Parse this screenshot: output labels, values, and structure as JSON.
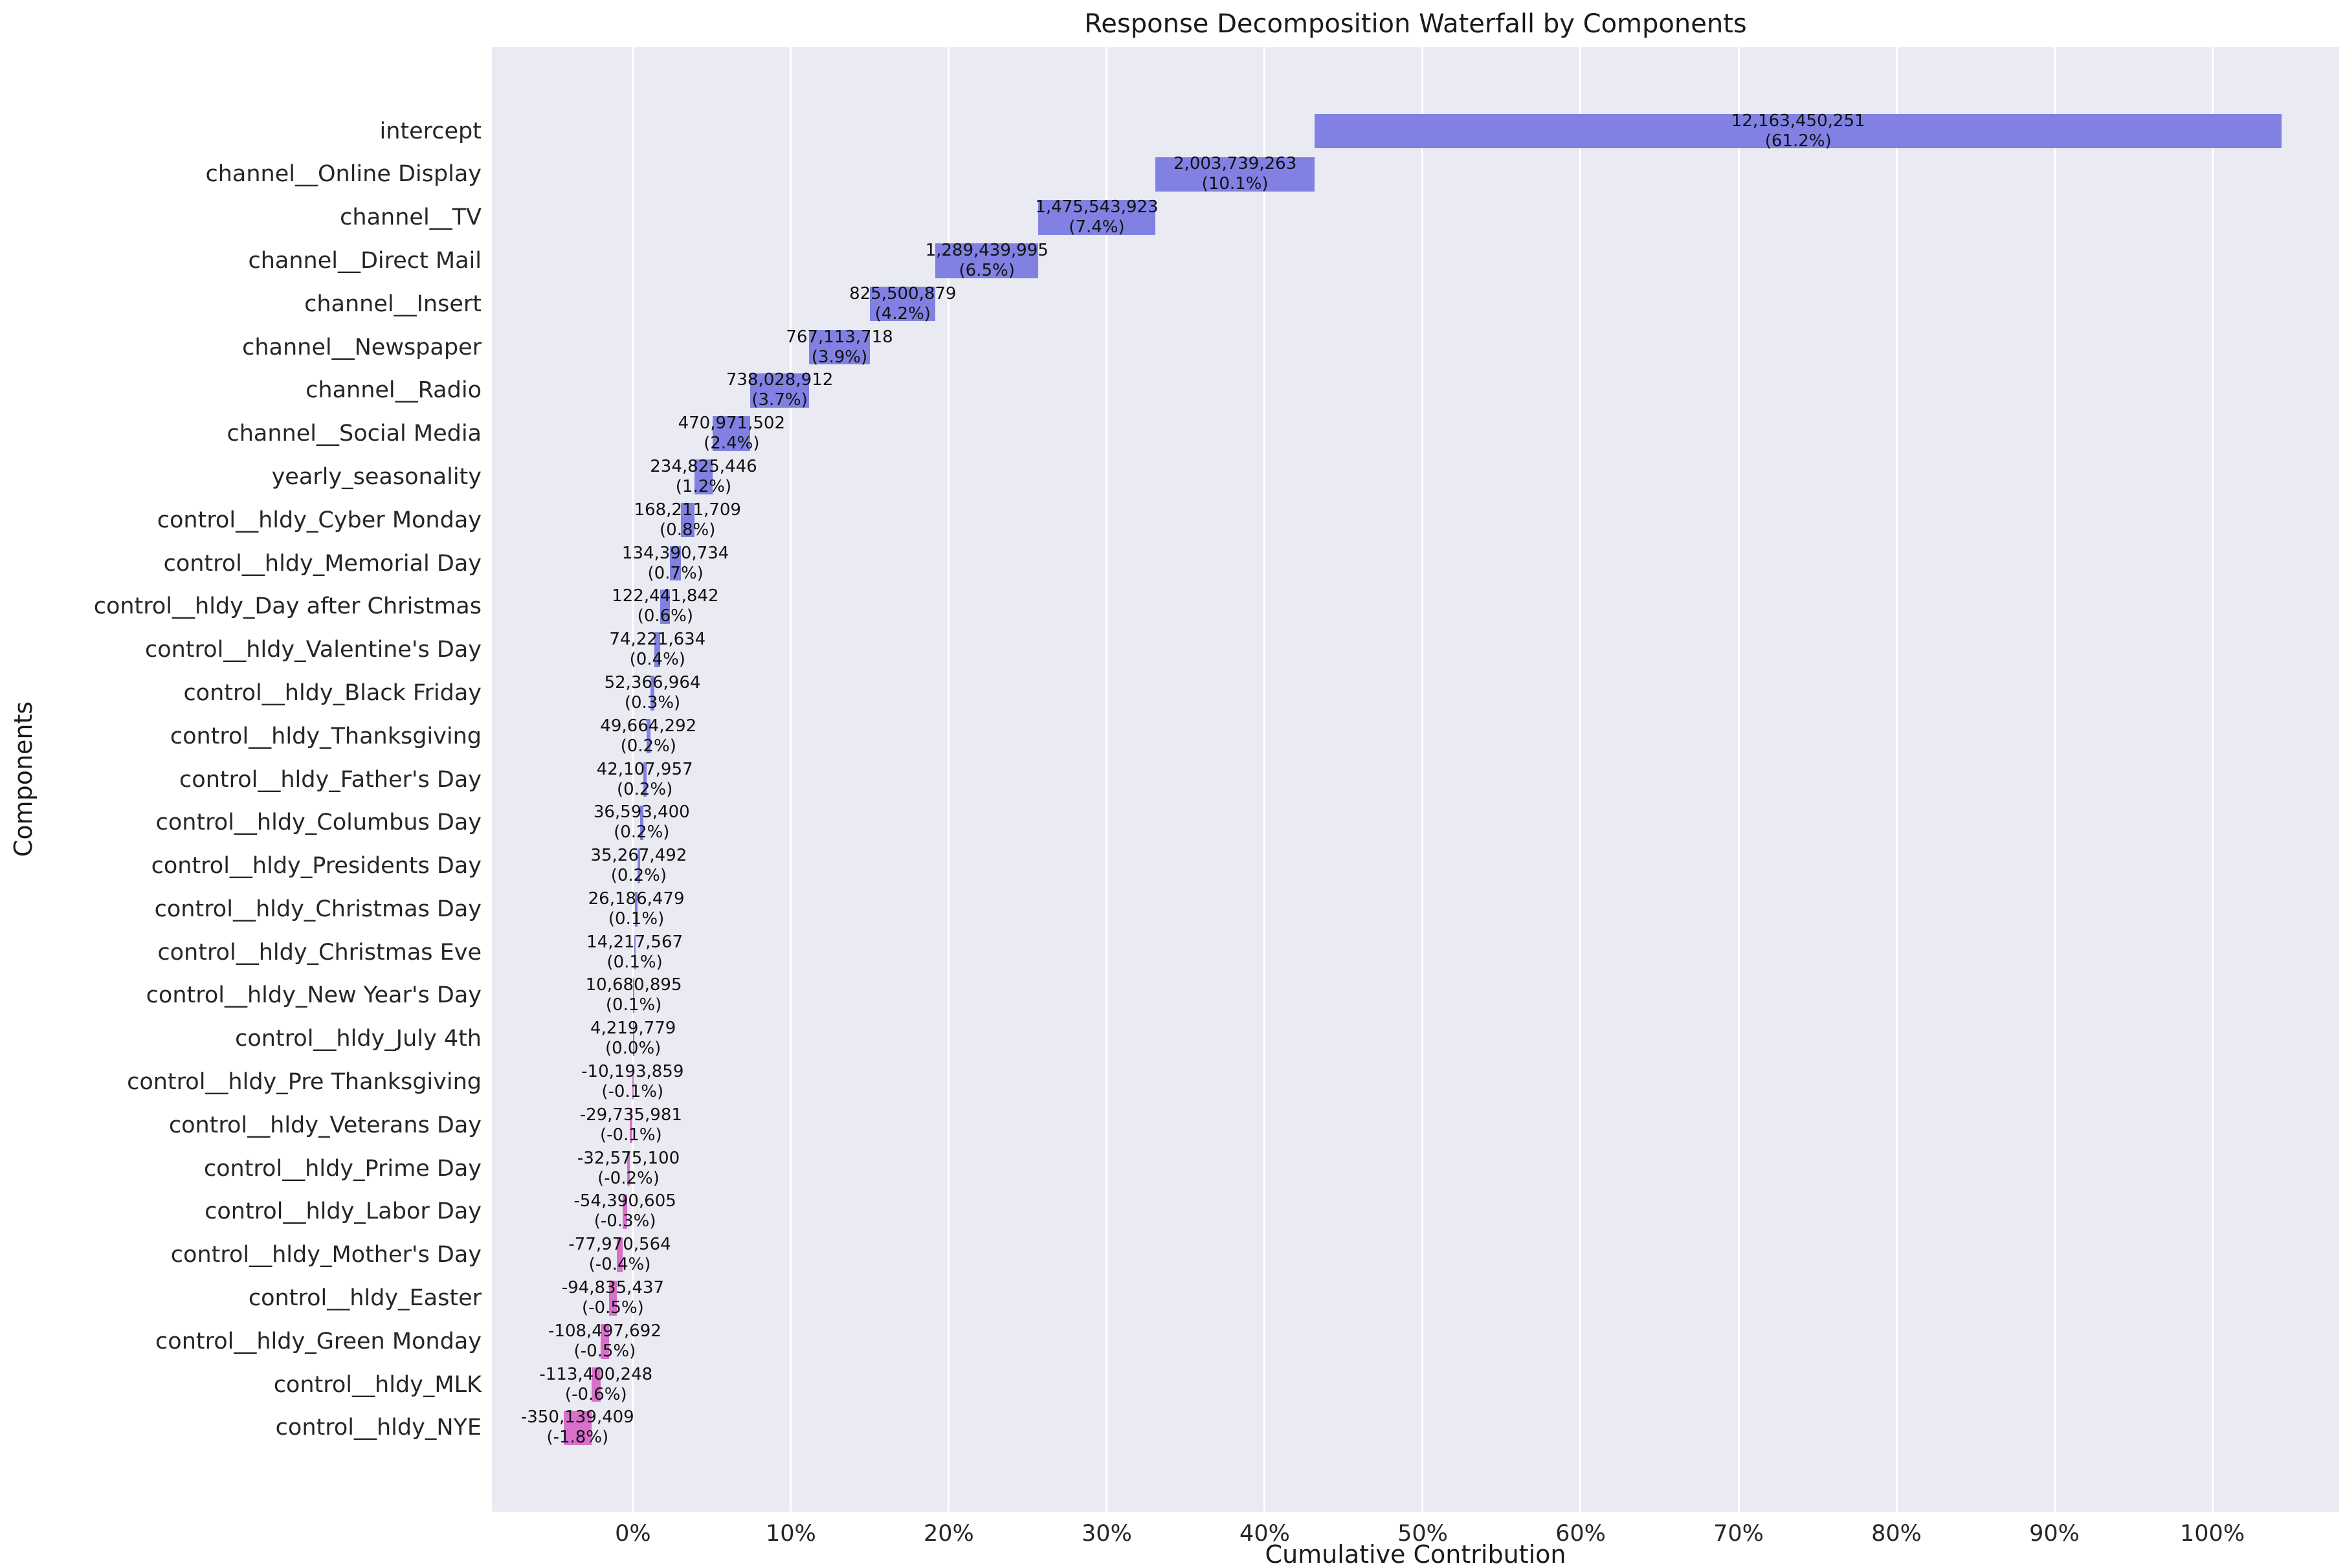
{
  "chart_data": {
    "type": "bar",
    "variant": "horizontal-waterfall",
    "title": "Response Decomposition Waterfall by Components",
    "xlabel": "Cumulative Contribution",
    "ylabel": "Components",
    "x_ticks": [
      "0%",
      "10%",
      "20%",
      "30%",
      "40%",
      "50%",
      "60%",
      "70%",
      "80%",
      "90%",
      "100%"
    ],
    "x_tick_values": [
      0,
      10,
      20,
      30,
      40,
      50,
      60,
      70,
      80,
      90,
      100
    ],
    "xlim": [
      -8.93,
      108.03
    ],
    "grid": true,
    "legend": "none",
    "colors": {
      "positive": "#8081e3",
      "negative": "#d76fcb",
      "plot_bg": "#eaeaf2",
      "grid": "#ffffff",
      "text": "#262626",
      "label_text": "#111111"
    },
    "components": [
      {
        "label": "intercept",
        "value": 12163450251,
        "value_label": "12,163,450,251",
        "pct_label": "(61.2%)"
      },
      {
        "label": "channel__Online Display",
        "value": 2003739263,
        "value_label": "2,003,739,263",
        "pct_label": "(10.1%)"
      },
      {
        "label": "channel__TV",
        "value": 1475543923,
        "value_label": "1,475,543,923",
        "pct_label": "(7.4%)"
      },
      {
        "label": "channel__Direct Mail",
        "value": 1289439995,
        "value_label": "1,289,439,995",
        "pct_label": "(6.5%)"
      },
      {
        "label": "channel__Insert",
        "value": 825500879,
        "value_label": "825,500,879",
        "pct_label": "(4.2%)"
      },
      {
        "label": "channel__Newspaper",
        "value": 767113718,
        "value_label": "767,113,718",
        "pct_label": "(3.9%)"
      },
      {
        "label": "channel__Radio",
        "value": 738028912,
        "value_label": "738,028,912",
        "pct_label": "(3.7%)"
      },
      {
        "label": "channel__Social Media",
        "value": 470971502,
        "value_label": "470,971,502",
        "pct_label": "(2.4%)"
      },
      {
        "label": "yearly_seasonality",
        "value": 234825446,
        "value_label": "234,825,446",
        "pct_label": "(1.2%)"
      },
      {
        "label": "control__hldy_Cyber Monday",
        "value": 168211709,
        "value_label": "168,211,709",
        "pct_label": "(0.8%)"
      },
      {
        "label": "control__hldy_Memorial Day",
        "value": 134390734,
        "value_label": "134,390,734",
        "pct_label": "(0.7%)"
      },
      {
        "label": "control__hldy_Day after Christmas",
        "value": 122441842,
        "value_label": "122,441,842",
        "pct_label": "(0.6%)"
      },
      {
        "label": "control__hldy_Valentine's Day",
        "value": 74221634,
        "value_label": "74,221,634",
        "pct_label": "(0.4%)"
      },
      {
        "label": "control__hldy_Black Friday",
        "value": 52366964,
        "value_label": "52,366,964",
        "pct_label": "(0.3%)"
      },
      {
        "label": "control__hldy_Thanksgiving",
        "value": 49664292,
        "value_label": "49,664,292",
        "pct_label": "(0.2%)"
      },
      {
        "label": "control__hldy_Father's Day",
        "value": 42107957,
        "value_label": "42,107,957",
        "pct_label": "(0.2%)"
      },
      {
        "label": "control__hldy_Columbus Day",
        "value": 36593400,
        "value_label": "36,593,400",
        "pct_label": "(0.2%)"
      },
      {
        "label": "control__hldy_Presidents Day",
        "value": 35267492,
        "value_label": "35,267,492",
        "pct_label": "(0.2%)"
      },
      {
        "label": "control__hldy_Christmas Day",
        "value": 26186479,
        "value_label": "26,186,479",
        "pct_label": "(0.1%)"
      },
      {
        "label": "control__hldy_Christmas Eve",
        "value": 14217567,
        "value_label": "14,217,567",
        "pct_label": "(0.1%)"
      },
      {
        "label": "control__hldy_New Year's Day",
        "value": 10680895,
        "value_label": "10,680,895",
        "pct_label": "(0.1%)"
      },
      {
        "label": "control__hldy_July 4th",
        "value": 4219779,
        "value_label": "4,219,779",
        "pct_label": "(0.0%)"
      },
      {
        "label": "control__hldy_Pre Thanksgiving",
        "value": -10193859,
        "value_label": "-10,193,859",
        "pct_label": "(-0.1%)"
      },
      {
        "label": "control__hldy_Veterans Day",
        "value": -29735981,
        "value_label": "-29,735,981",
        "pct_label": "(-0.1%)"
      },
      {
        "label": "control__hldy_Prime Day",
        "value": -32575100,
        "value_label": "-32,575,100",
        "pct_label": "(-0.2%)"
      },
      {
        "label": "control__hldy_Labor Day",
        "value": -54390605,
        "value_label": "-54,390,605",
        "pct_label": "(-0.3%)"
      },
      {
        "label": "control__hldy_Mother's Day",
        "value": -77970564,
        "value_label": "-77,970,564",
        "pct_label": "(-0.4%)"
      },
      {
        "label": "control__hldy_Easter",
        "value": -94835437,
        "value_label": "-94,835,437",
        "pct_label": "(-0.5%)"
      },
      {
        "label": "control__hldy_Green Monday",
        "value": -108497692,
        "value_label": "-108,497,692",
        "pct_label": "(-0.5%)"
      },
      {
        "label": "control__hldy_MLK",
        "value": -113400248,
        "value_label": "-113,400,248",
        "pct_label": "(-0.6%)"
      },
      {
        "label": "control__hldy_NYE",
        "value": -350139409,
        "value_label": "-350,139,409",
        "pct_label": "(-1.8%)"
      }
    ]
  }
}
